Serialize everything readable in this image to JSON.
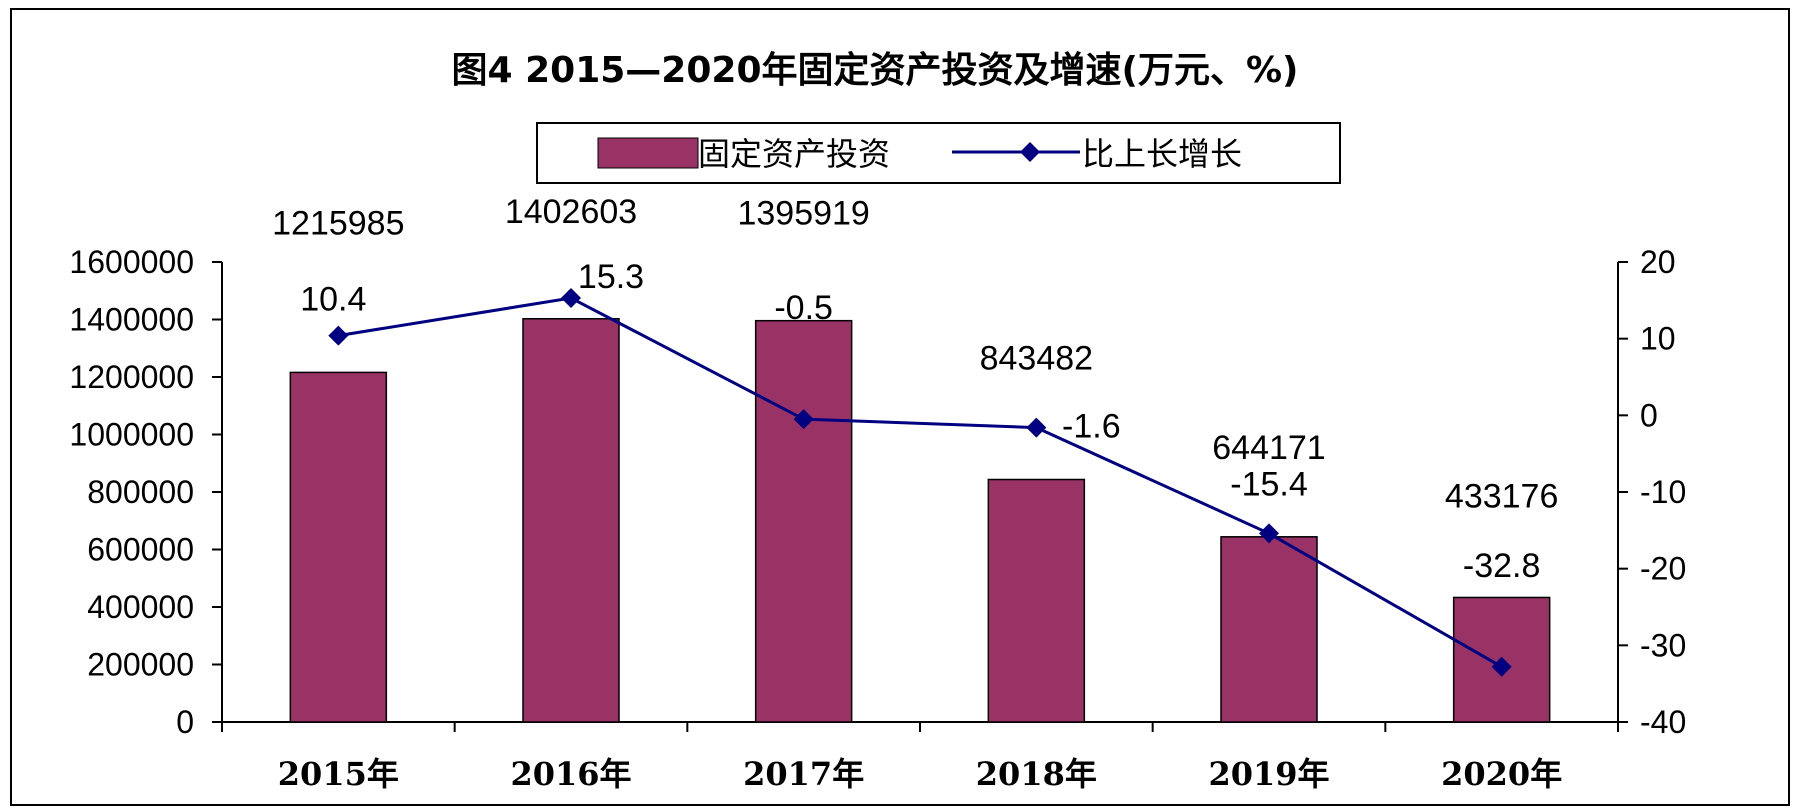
{
  "chart_data": {
    "type": "bar",
    "title": "图4  2015—2020年固定资产投资及增速(万元、%)",
    "categories": [
      "2015年",
      "2016年",
      "2017年",
      "2018年",
      "2019年",
      "2020年"
    ],
    "series": [
      {
        "name": "固定资产投资",
        "type": "bar",
        "axis": "left",
        "color": "#993366",
        "values": [
          1215985,
          1402603,
          1395919,
          843482,
          644171,
          433176
        ],
        "labels": [
          "1215985",
          "1402603",
          "1395919",
          "843482",
          "644171",
          "433176"
        ]
      },
      {
        "name": "比上长增长",
        "type": "line",
        "axis": "right",
        "color": "#000080",
        "values": [
          10.4,
          15.3,
          -0.5,
          -1.6,
          -15.4,
          -32.8
        ],
        "labels": [
          "10.4",
          "15.3",
          "-0.5",
          "-1.6",
          "-15.4",
          "-32.8"
        ]
      }
    ],
    "left_axis": {
      "ylim": [
        0,
        1600000
      ],
      "ticks": [
        "0",
        "200000",
        "400000",
        "600000",
        "800000",
        "1000000",
        "1200000",
        "1400000",
        "1600000"
      ]
    },
    "right_axis": {
      "ylim": [
        -40,
        20
      ],
      "ticks": [
        "-40",
        "-30",
        "-20",
        "-10",
        "0",
        "10",
        "20"
      ]
    },
    "legend": "top-center",
    "grid": false
  }
}
